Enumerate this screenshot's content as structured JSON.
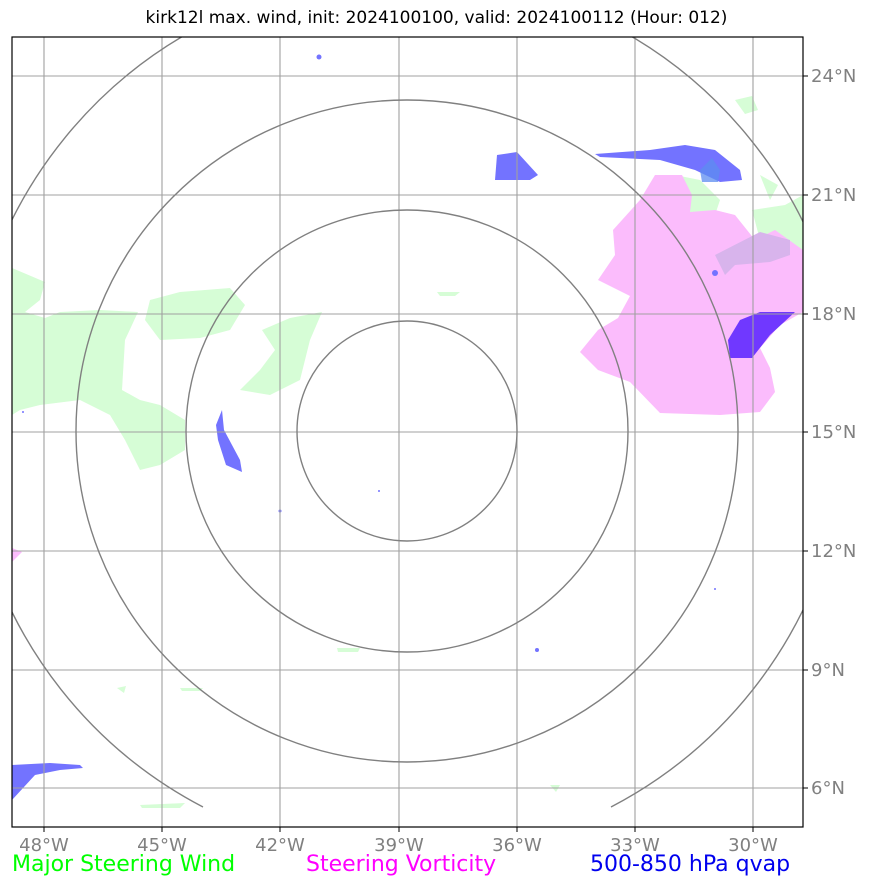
{
  "title": "kirk12l max. wind, init: 2024100100, valid: 2024100112 (Hour: 012)",
  "map": {
    "lon_ticks": [
      "48°W",
      "45°W",
      "42°W",
      "39°W",
      "36°W",
      "33°W",
      "30°W"
    ],
    "lat_ticks": [
      "24°N",
      "21°N",
      "18°N",
      "15°N",
      "12°N",
      "9°N",
      "6°N"
    ],
    "center": "15°N 39°W",
    "range_rings": 4,
    "colors": {
      "steering_wind": "#d6fdd6",
      "steering_vorticity": "#fbbcfc",
      "qvap": "#7373ff",
      "ring": "#808080",
      "grid": "#a0a0a0",
      "tick_label": "#808080"
    }
  },
  "legend": {
    "wind": "Major Steering Wind",
    "vorticity": "Steering Vorticity",
    "qvap": "500-850 hPa qvap",
    "wind_color": "#00ff00",
    "vorticity_color": "#ff00ff",
    "qvap_color": "#0000ee"
  }
}
